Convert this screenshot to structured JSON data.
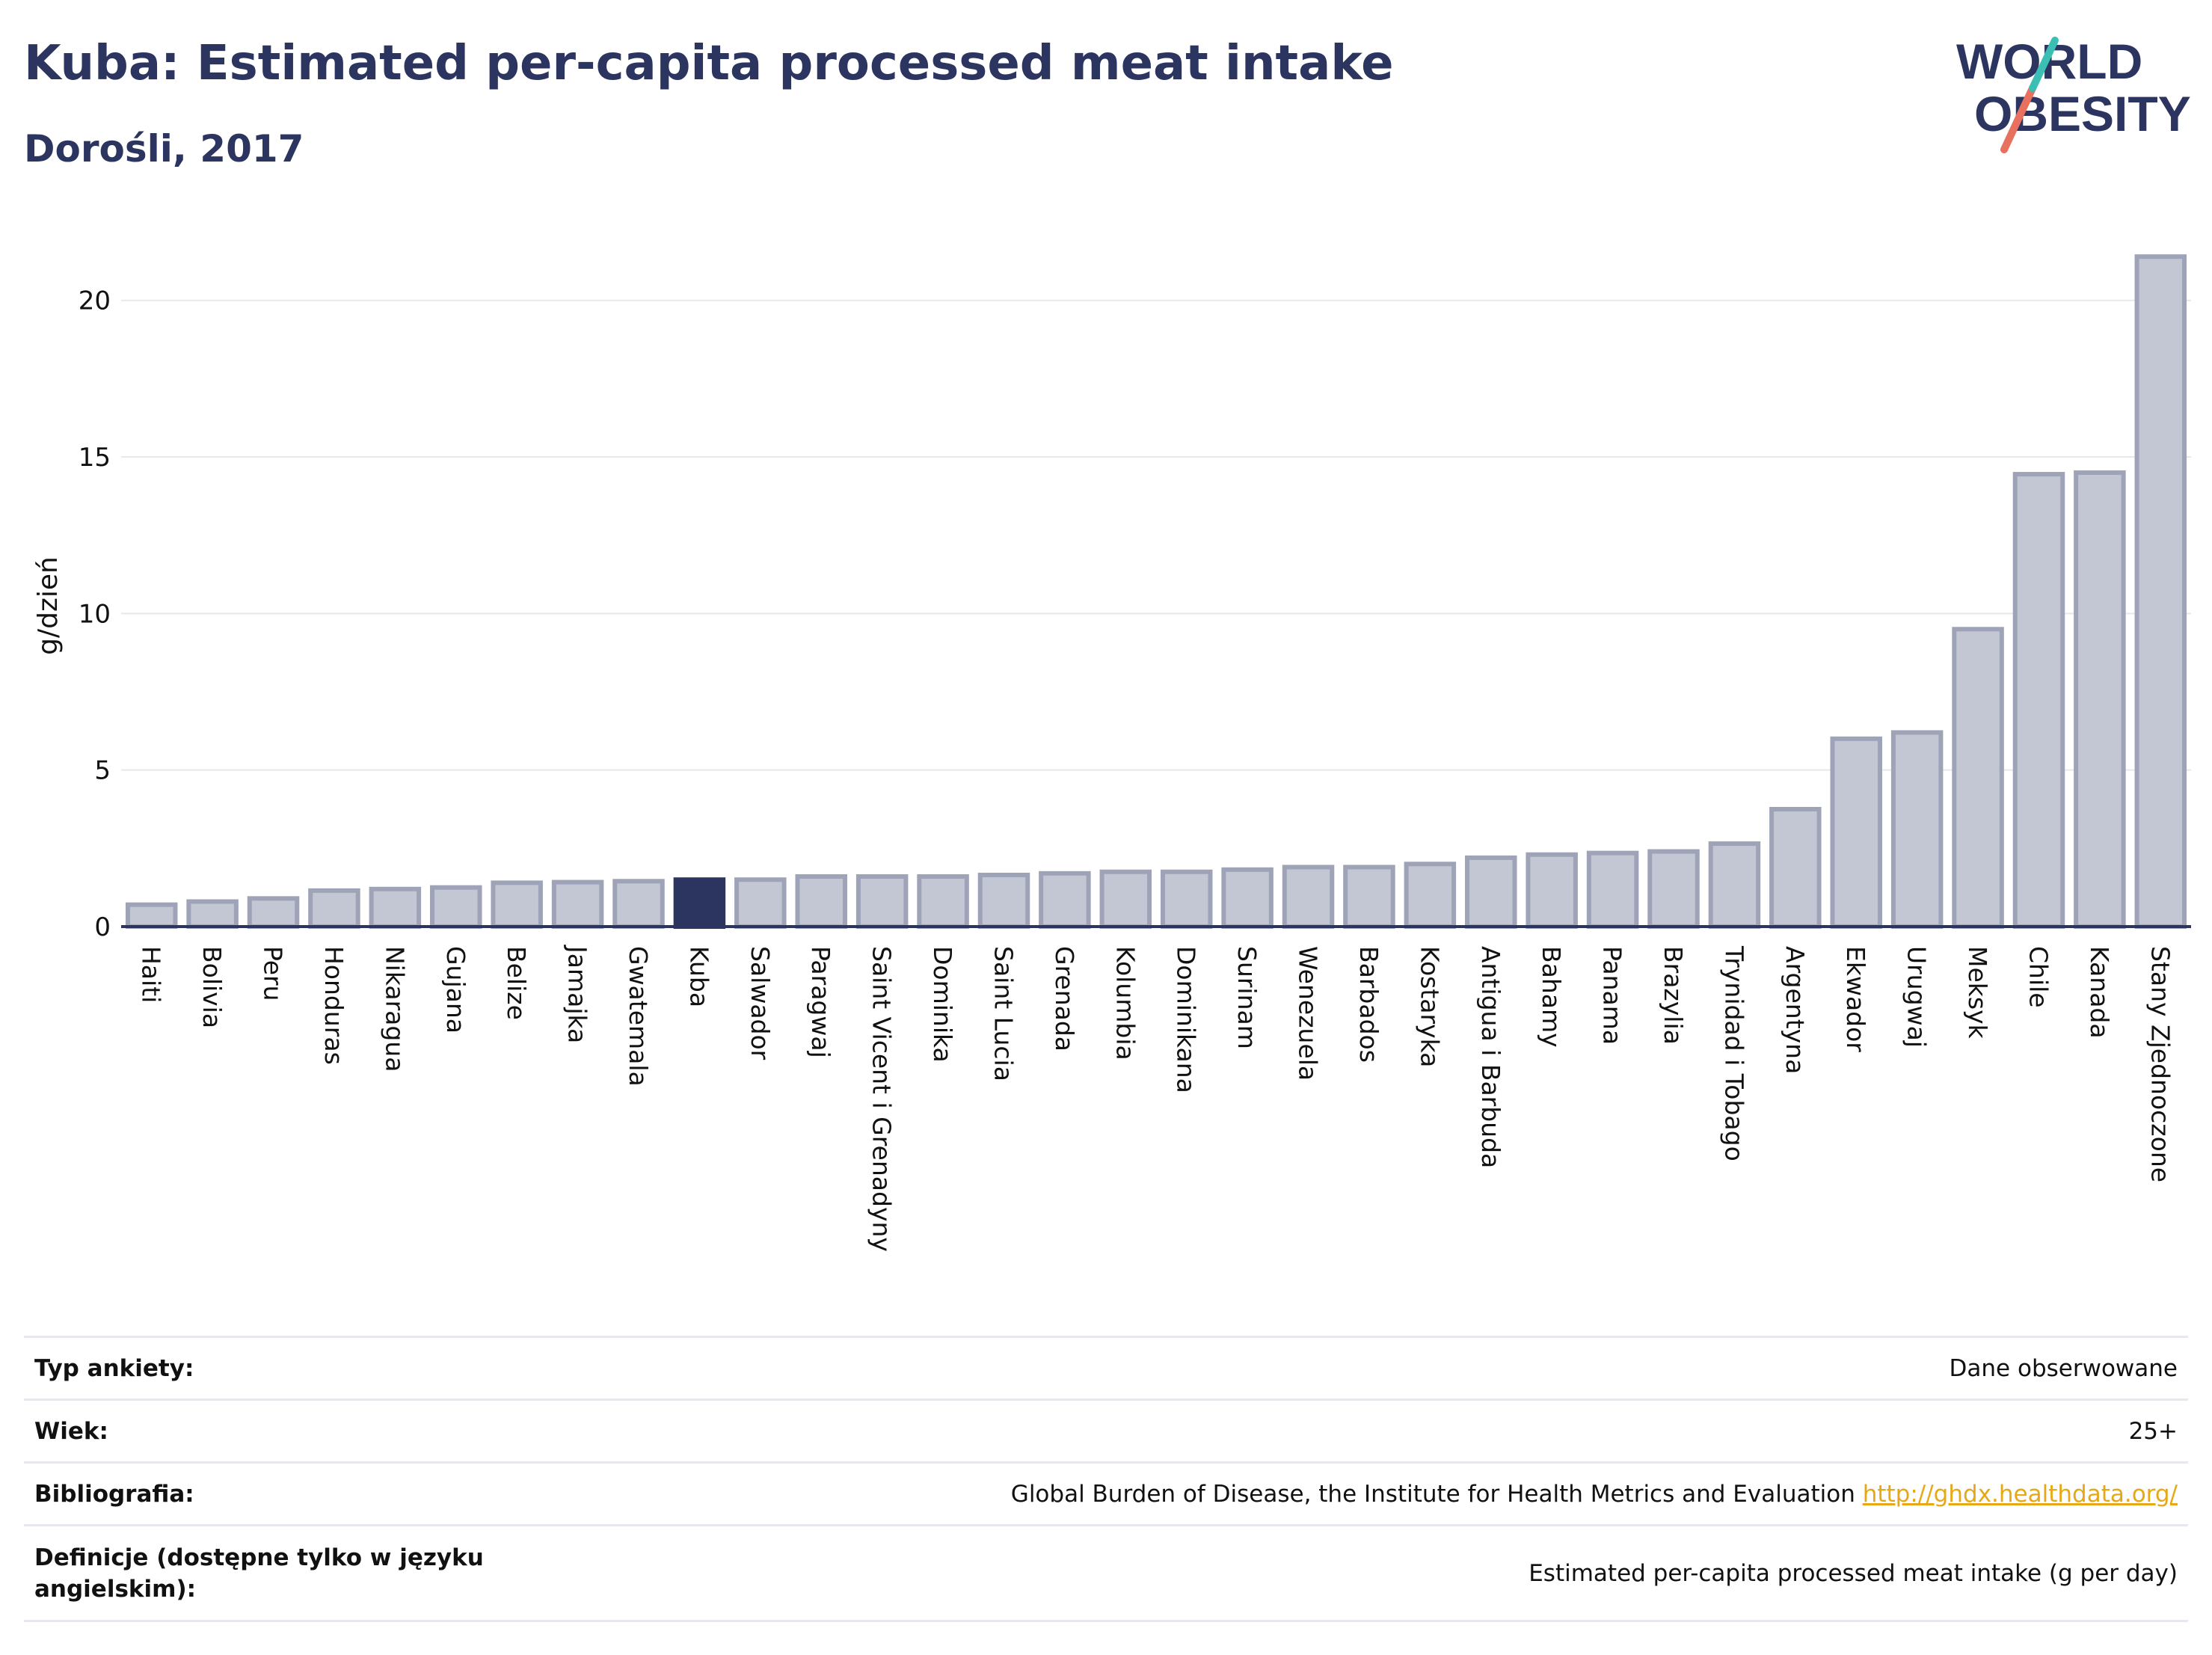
{
  "header": {
    "title": "Kuba: Estimated per-capita processed meat intake",
    "subtitle": "Dorośli, 2017"
  },
  "logo": {
    "line1": "WORLD",
    "line2": "OBESITY",
    "accent_teal": "#3bbfb4",
    "accent_coral": "#e8705f",
    "color": "#2b3560"
  },
  "colors": {
    "bar": "#c3c6d3",
    "bar_stroke": "#9ea3b8",
    "highlight": "#2b3560",
    "axis": "#2b3560",
    "grid": "#e6e8ee"
  },
  "chart_data": {
    "type": "bar",
    "ylabel": "g/dzień",
    "ylim": [
      0,
      22
    ],
    "yticks": [
      0,
      5,
      10,
      15,
      20
    ],
    "grid": true,
    "highlight": "Kuba",
    "categories": [
      "Haiti",
      "Bolivia",
      "Peru",
      "Honduras",
      "Nikaragua",
      "Gujana",
      "Belize",
      "Jamajka",
      "Gwatemala",
      "Kuba",
      "Salwador",
      "Paragwaj",
      "Saint Vicent i Grenadyny",
      "Dominika",
      "Saint Lucia",
      "Grenada",
      "Kolumbia",
      "Dominikana",
      "Surinam",
      "Wenezuela",
      "Barbados",
      "Kostaryka",
      "Antigua i Barbuda",
      "Bahamy",
      "Panama",
      "Brazylia",
      "Trynidad i Tobago",
      "Argentyna",
      "Ekwador",
      "Urugwaj",
      "Meksyk",
      "Chile",
      "Kanada",
      "Stany Zjednoczone"
    ],
    "values": [
      0.7,
      0.8,
      0.9,
      1.15,
      1.2,
      1.25,
      1.4,
      1.42,
      1.45,
      1.5,
      1.5,
      1.6,
      1.6,
      1.6,
      1.65,
      1.7,
      1.75,
      1.75,
      1.82,
      1.9,
      1.9,
      2.0,
      2.2,
      2.3,
      2.35,
      2.4,
      2.65,
      3.75,
      6.0,
      6.2,
      9.5,
      14.45,
      14.5,
      21.4
    ]
  },
  "info": [
    {
      "key": "Typ ankiety:",
      "value": "Dane obserwowane"
    },
    {
      "key": "Wiek:",
      "value": "25+"
    },
    {
      "key": "Bibliografia:",
      "value": "Global Burden of Disease, the Institute for Health Metrics and Evaluation",
      "link": "http://ghdx.healthdata.org/"
    },
    {
      "key": "Definicje (dostępne tylko w języku angielskim):",
      "value": "Estimated per-capita processed meat intake (g per day)"
    }
  ]
}
